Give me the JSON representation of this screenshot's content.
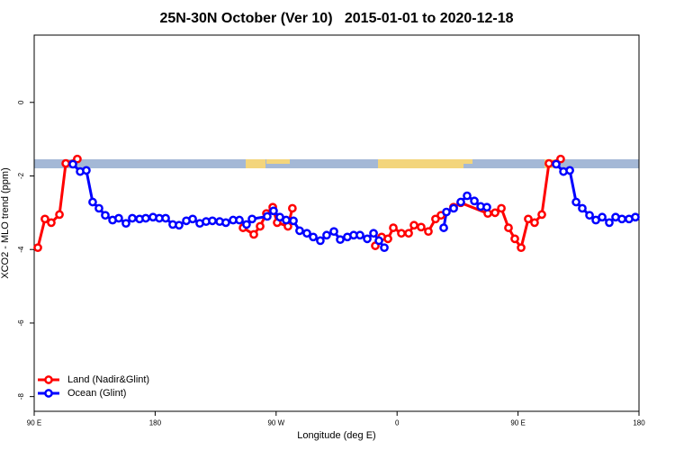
{
  "chart_data": {
    "type": "line",
    "title": "25N-30N October (Ver 10)   2015-01-01 to 2020-12-18",
    "x_label": "Longitude (deg E)",
    "y_label": "XCO2 - MLO trend (ppm)",
    "xlim": [
      90,
      540
    ],
    "xticks": [
      {
        "value": 90,
        "label": "90 E"
      },
      180,
      {
        "value": 270,
        "label": "90 W"
      },
      {
        "value": 360,
        "label": "0"
      },
      {
        "value": 450,
        "label": "90 E"
      },
      {
        "value": 540,
        "label": "180"
      }
    ],
    "ylim": [
      -8.4,
      1.83
    ],
    "yticks": [
      -8,
      -6,
      -4,
      -2,
      0
    ],
    "legend": "bottom left",
    "series": [
      {
        "name": "Land (Nadir&Glint)",
        "color": "#ff0000",
        "x": [
          92.7,
          98,
          102.7,
          108.8,
          113.5,
          122.1,
          null,
          245.4,
          253.4,
          258.1,
          262.8,
          267.5,
          270.8,
          278.8,
          282.1,
          null,
          343.8,
          348.5,
          353.2,
          357.2,
          363.2,
          368.6,
          372.6,
          377.9,
          383.3,
          388.6,
          392.7,
          402,
          407.4,
          427.5,
          432.9,
          437.6,
          442.9,
          447.6,
          452.3,
          457.6,
          462.3,
          467.7,
          473,
          481.7
        ],
        "values": [
          -3.95,
          -3.17,
          -3.27,
          -3.05,
          -1.66,
          -1.54,
          null,
          -3.41,
          -3.59,
          -3.37,
          -3.02,
          -2.85,
          -3.27,
          -3.37,
          -2.88,
          null,
          -3.9,
          -3.66,
          -3.71,
          -3.41,
          -3.56,
          -3.56,
          -3.34,
          -3.39,
          -3.51,
          -3.17,
          -3.07,
          -2.85,
          -2.73,
          -3.02,
          -3.0,
          -2.88,
          -3.41,
          -3.71,
          -3.95,
          -3.17,
          -3.27,
          -3.05,
          -1.66,
          -1.54
        ]
      },
      {
        "name": "Ocean (Glint)",
        "color": "#0000ff",
        "x": [
          118.8,
          124.2,
          128.8,
          133.5,
          138.2,
          142.9,
          148.3,
          152.9,
          158.3,
          163,
          168.4,
          173,
          178.4,
          183.1,
          187.8,
          193.1,
          197.8,
          203.2,
          207.9,
          213.2,
          217.9,
          222.6,
          228,
          232.6,
          238,
          242.7,
          248,
          252.1,
          263.4,
          268.1,
          272.8,
          277.5,
          282.9,
          287.5,
          292.9,
          297.6,
          302.9,
          307.6,
          313,
          317.7,
          323,
          327.7,
          332.4,
          337.8,
          342.5,
          346.5,
          350.5,
          null,
          394.7,
          396.7,
          402.1,
          407.4,
          412.1,
          417.5,
          422.2,
          426.8,
          null,
          478.4,
          483.8,
          488.5,
          493.2,
          497.8,
          503.2,
          507.9,
          512.6,
          517.9,
          522.6,
          527.3,
          532.6,
          537.3
        ],
        "values": [
          -1.68,
          -1.88,
          -1.85,
          -2.71,
          -2.88,
          -3.07,
          -3.2,
          -3.15,
          -3.29,
          -3.15,
          -3.17,
          -3.15,
          -3.12,
          -3.15,
          -3.15,
          -3.32,
          -3.34,
          -3.22,
          -3.17,
          -3.29,
          -3.24,
          -3.22,
          -3.24,
          -3.27,
          -3.2,
          -3.2,
          -3.32,
          -3.17,
          -3.1,
          -2.95,
          -3.12,
          -3.2,
          -3.22,
          -3.49,
          -3.56,
          -3.66,
          -3.76,
          -3.61,
          -3.51,
          -3.73,
          -3.66,
          -3.61,
          -3.61,
          -3.71,
          -3.56,
          -3.76,
          -3.95,
          null,
          -3.41,
          -2.98,
          -2.88,
          -2.71,
          -2.54,
          -2.68,
          -2.83,
          -2.85,
          null,
          -1.68,
          -1.88,
          -1.85,
          -2.71,
          -2.88,
          -3.07,
          -3.2,
          -3.12,
          -3.27,
          -3.12,
          -3.17,
          -3.17,
          -3.12
        ]
      }
    ]
  }
}
